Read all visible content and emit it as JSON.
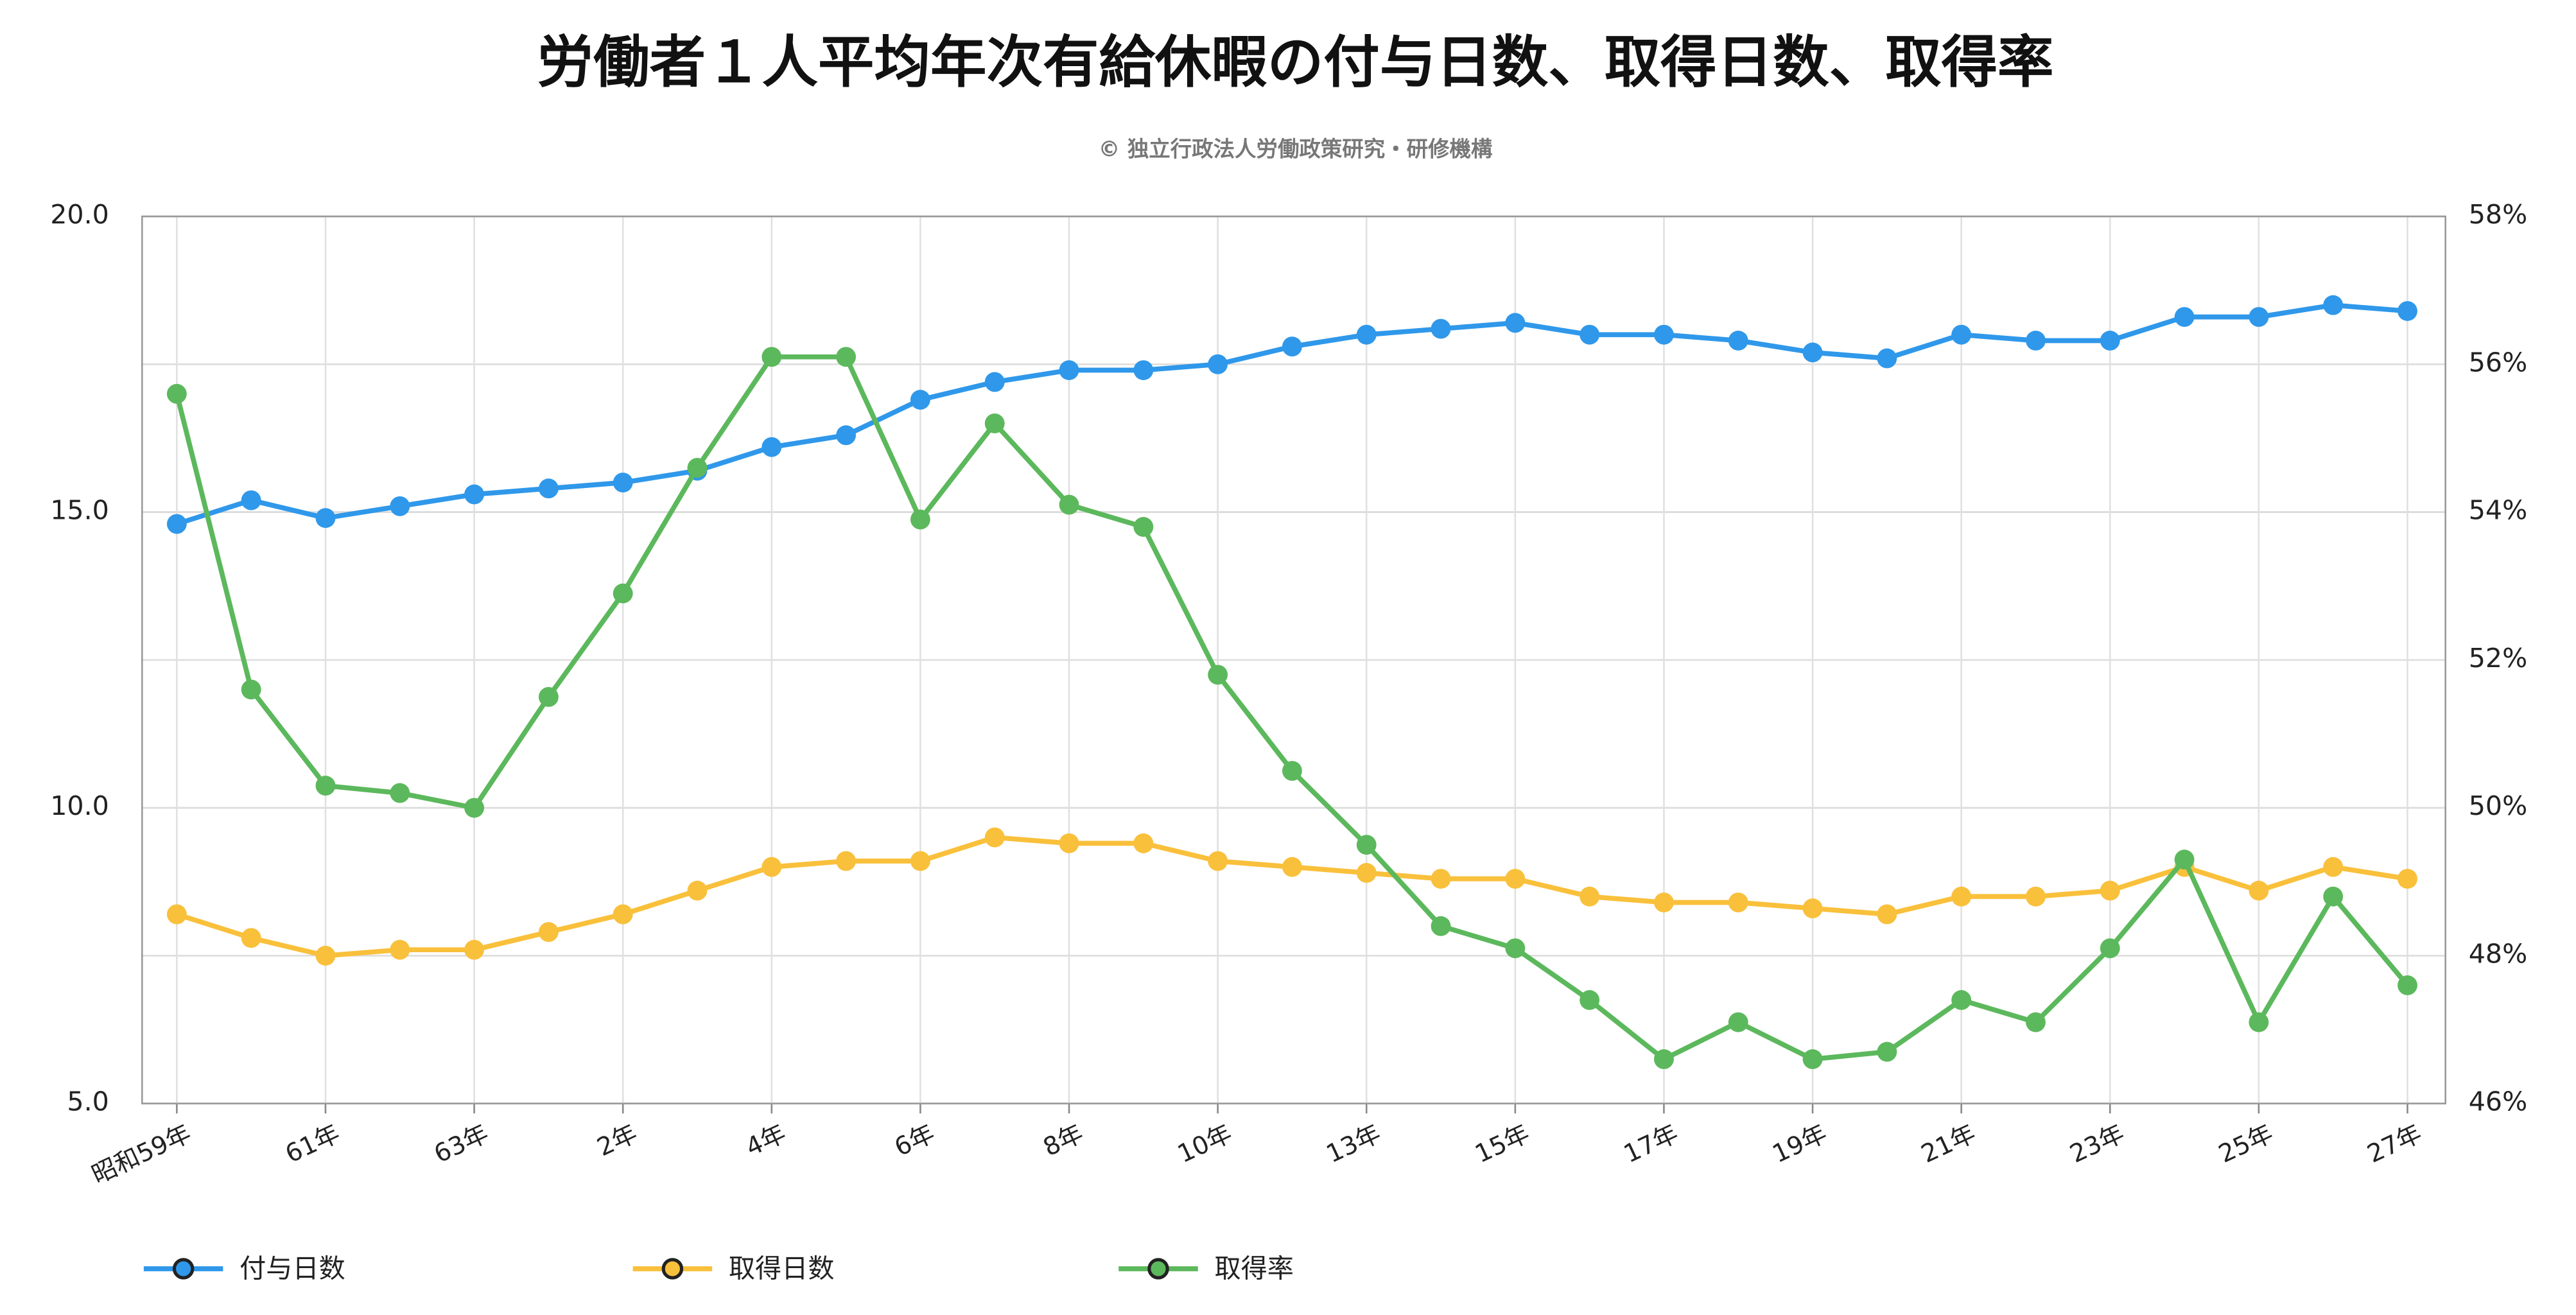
{
  "chart_data": {
    "type": "line",
    "title": "労働者１人平均年次有給休暇の付与日数、取得日数、取得率",
    "subtitle": "© 独立行政法人労働政策研究・研修機構",
    "categories": [
      "昭和59年",
      null,
      "61年",
      null,
      "63年",
      null,
      "2年",
      null,
      "4年",
      null,
      "6年",
      null,
      "8年",
      null,
      "10年",
      null,
      "13年",
      null,
      "15年",
      null,
      "17年",
      null,
      "19年",
      null,
      "21年",
      null,
      "23年",
      null,
      "25年",
      null,
      "27年"
    ],
    "series": [
      {
        "name": "付与日数",
        "color": "#2f98ea",
        "values": [
          14.8,
          15.2,
          14.9,
          15.1,
          15.3,
          15.4,
          15.5,
          15.7,
          16.1,
          16.3,
          16.9,
          17.2,
          17.4,
          17.4,
          17.5,
          17.8,
          18.0,
          18.1,
          18.2,
          18.0,
          18.0,
          17.9,
          17.7,
          17.6,
          18.0,
          17.9,
          17.9,
          18.3,
          18.3,
          18.5,
          18.4
        ]
      },
      {
        "name": "取得日数",
        "color": "#f9c03b",
        "values": [
          8.2,
          7.8,
          7.5,
          7.6,
          7.6,
          7.9,
          8.2,
          8.6,
          9.0,
          9.1,
          9.1,
          9.5,
          9.4,
          9.4,
          9.1,
          9.0,
          8.9,
          8.8,
          8.8,
          8.5,
          8.4,
          8.4,
          8.3,
          8.2,
          8.5,
          8.5,
          8.6,
          9.0,
          8.6,
          9.0,
          8.8
        ]
      },
      {
        "name": "取得率",
        "color": "#5cb85c",
        "axis": "y2",
        "values": [
          55.6,
          51.6,
          50.3,
          50.2,
          50.0,
          51.5,
          52.9,
          54.6,
          56.1,
          56.1,
          53.9,
          55.2,
          54.1,
          53.8,
          51.8,
          50.5,
          49.5,
          48.4,
          48.1,
          47.4,
          46.6,
          47.1,
          46.6,
          46.7,
          47.4,
          47.1,
          48.1,
          49.3,
          47.1,
          48.8,
          47.6
        ]
      }
    ],
    "ylim": [
      5,
      20
    ],
    "yticks": [
      {
        "value": 5,
        "label": "5.0"
      },
      {
        "value": 10,
        "label": "10.0"
      },
      {
        "value": 15,
        "label": "15.0"
      },
      {
        "value": 20,
        "label": "20.0"
      }
    ],
    "y2lim": [
      46,
      58
    ],
    "y2ticks": [
      {
        "value": 46,
        "label": "46%"
      },
      {
        "value": 48,
        "label": "48%"
      },
      {
        "value": 50,
        "label": "50%"
      },
      {
        "value": 52,
        "label": "52%"
      },
      {
        "value": 54,
        "label": "54%"
      },
      {
        "value": 56,
        "label": "56%"
      },
      {
        "value": 58,
        "label": "58%"
      }
    ],
    "grid": true,
    "legend": "bottom"
  }
}
